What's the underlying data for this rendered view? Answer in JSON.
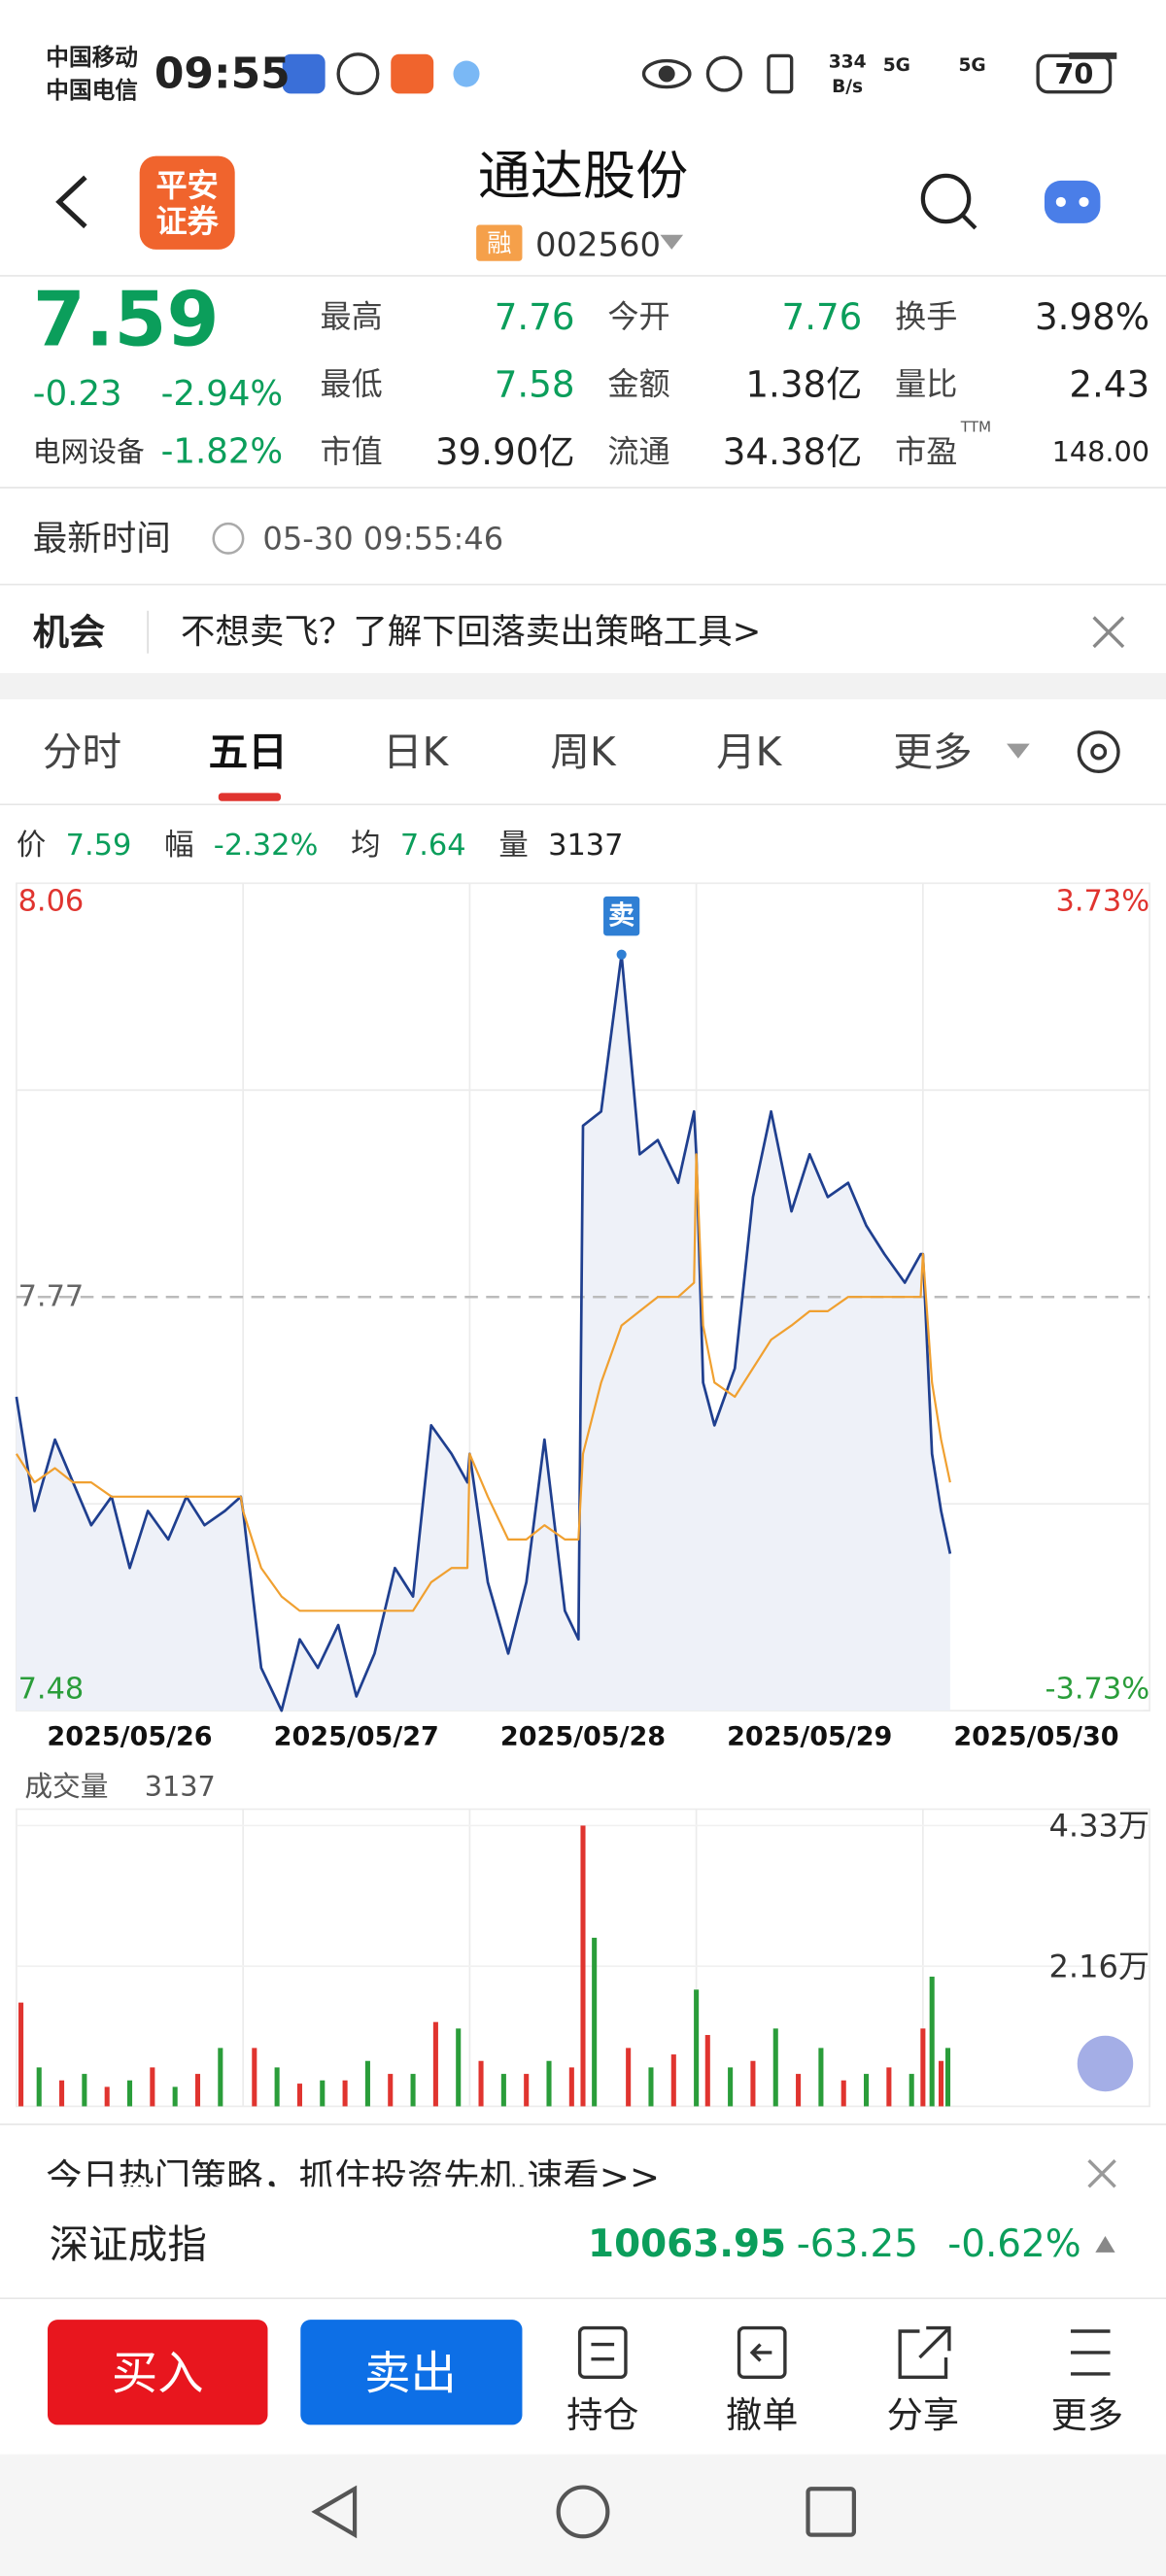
{
  "status_bar": {
    "carrier_1": "中国移动",
    "carrier_2": "中国电信",
    "time": "09:55",
    "speed_value": "334",
    "speed_unit": "B/s",
    "network": "5G",
    "battery": "70"
  },
  "header": {
    "logo_line_1": "平安",
    "logo_line_2": "证券",
    "title": "通达股份",
    "badge": "融",
    "code": "002560"
  },
  "quote": {
    "price": "7.59",
    "change": "-0.23",
    "change_pct": "-2.94%",
    "sector": "电网设备",
    "sector_pct": "-1.82%",
    "ttm": "TTM",
    "stats": [
      {
        "label": "最高",
        "value": "7.76",
        "color": "#0b9e5b"
      },
      {
        "label": "今开",
        "value": "7.76",
        "color": "#0b9e5b"
      },
      {
        "label": "换手",
        "value": "3.98%",
        "color": "#222222"
      },
      {
        "label": "最低",
        "value": "7.58",
        "color": "#0b9e5b"
      },
      {
        "label": "金额",
        "value": "1.38亿",
        "color": "#222222"
      },
      {
        "label": "量比",
        "value": "2.43",
        "color": "#222222"
      },
      {
        "label": "市值",
        "value": "39.90亿",
        "color": "#222222"
      },
      {
        "label": "流通",
        "value": "34.38亿",
        "color": "#222222"
      },
      {
        "label": "市盈",
        "value": "148.00",
        "color": "#222222"
      }
    ]
  },
  "update": {
    "label": "最新时间",
    "time": "05-30 09:55:46"
  },
  "banner": {
    "tag": "机会",
    "text": "不想卖飞？了解下回落卖出策略工具>"
  },
  "tabs": [
    "分时",
    "五日",
    "日K",
    "周K",
    "月K",
    "更多"
  ],
  "active_tab": 1,
  "chart_info": [
    {
      "label": "价",
      "value": "7.59",
      "color": "#0b9e5b"
    },
    {
      "label": "幅",
      "value": "-2.32%",
      "color": "#0b9e5b"
    },
    {
      "label": "均",
      "value": "7.64",
      "color": "#0b9e5b"
    },
    {
      "label": "量",
      "value": "3137",
      "color": "#222222"
    }
  ],
  "chart_data": [
    {
      "type": "line",
      "categories": [
        "2025/05/26",
        "2025/05/27",
        "2025/05/28",
        "2025/05/29",
        "2025/05/30"
      ],
      "xlim": [
        0,
        5
      ],
      "ylim": [
        7.48,
        8.06
      ],
      "yticks": [
        8.06,
        7.77,
        7.48
      ],
      "y2lim": [
        -3.73,
        3.73
      ],
      "y2ticks": [
        {
          "value": 3.73,
          "label": "3.73%"
        },
        {
          "value": -3.73,
          "label": "-3.73%"
        }
      ],
      "up_color": "#e0342f",
      "down_color": "#2a9d3a",
      "flat_color": "#666666",
      "series": [
        {
          "color": "#1f3f8f",
          "x": [
            0,
            0.08,
            0.17,
            0.25,
            0.33,
            0.42,
            0.5,
            0.58,
            0.67,
            0.75,
            0.83,
            0.92,
            0.99,
            1.0,
            1.08,
            1.17,
            1.25,
            1.33,
            1.42,
            1.5,
            1.58,
            1.67,
            1.75,
            1.83,
            1.92,
            1.99,
            2.0,
            2.08,
            2.17,
            2.25,
            2.33,
            2.42,
            2.48,
            2.5,
            2.58,
            2.67,
            2.75,
            2.83,
            2.92,
            2.99,
            3.0,
            3.03,
            3.08,
            3.17,
            3.25,
            3.33,
            3.42,
            3.5,
            3.58,
            3.67,
            3.75,
            3.83,
            3.92,
            3.99,
            4.0,
            4.04,
            4.08,
            4.12
          ],
          "values": [
            7.7,
            7.62,
            7.67,
            7.64,
            7.61,
            7.63,
            7.58,
            7.62,
            7.6,
            7.63,
            7.61,
            7.62,
            7.63,
            7.62,
            7.51,
            7.48,
            7.53,
            7.51,
            7.54,
            7.49,
            7.52,
            7.58,
            7.56,
            7.68,
            7.66,
            7.64,
            7.66,
            7.57,
            7.52,
            7.57,
            7.67,
            7.55,
            7.53,
            7.89,
            7.9,
            8.01,
            7.87,
            7.88,
            7.85,
            7.9,
            7.87,
            7.71,
            7.68,
            7.72,
            7.84,
            7.9,
            7.83,
            7.87,
            7.84,
            7.85,
            7.82,
            7.8,
            7.78,
            7.8,
            7.8,
            7.66,
            7.62,
            7.59
          ]
        },
        {
          "color": "#f0a030",
          "x": [
            0,
            0.08,
            0.17,
            0.25,
            0.33,
            0.42,
            0.5,
            0.58,
            0.67,
            0.75,
            0.83,
            0.92,
            0.99,
            1.0,
            1.08,
            1.17,
            1.25,
            1.33,
            1.42,
            1.5,
            1.58,
            1.67,
            1.75,
            1.83,
            1.92,
            1.99,
            2.0,
            2.08,
            2.17,
            2.25,
            2.33,
            2.42,
            2.48,
            2.5,
            2.58,
            2.67,
            2.75,
            2.83,
            2.92,
            2.99,
            3.0,
            3.03,
            3.08,
            3.17,
            3.25,
            3.33,
            3.42,
            3.5,
            3.58,
            3.67,
            3.75,
            3.83,
            3.92,
            3.99,
            4.0,
            4.04,
            4.08,
            4.12
          ],
          "values": [
            7.66,
            7.64,
            7.65,
            7.64,
            7.64,
            7.63,
            7.63,
            7.63,
            7.63,
            7.63,
            7.63,
            7.63,
            7.63,
            7.62,
            7.58,
            7.56,
            7.55,
            7.55,
            7.55,
            7.55,
            7.55,
            7.55,
            7.55,
            7.57,
            7.58,
            7.58,
            7.66,
            7.63,
            7.6,
            7.6,
            7.61,
            7.6,
            7.6,
            7.66,
            7.71,
            7.75,
            7.76,
            7.77,
            7.77,
            7.78,
            7.87,
            7.75,
            7.71,
            7.7,
            7.72,
            7.74,
            7.75,
            7.76,
            7.76,
            7.77,
            7.77,
            7.77,
            7.77,
            7.77,
            7.8,
            7.71,
            7.67,
            7.64
          ]
        }
      ],
      "marker": {
        "label": "卖",
        "x": 2.67,
        "value": 8.01,
        "color": "#2f7fd4"
      }
    },
    {
      "type": "bar",
      "title": "成交量",
      "latest": "3137",
      "xlim": [
        0,
        5
      ],
      "ylim": [
        0,
        43300
      ],
      "yticks": [
        {
          "value": 43300,
          "label": "4.33万"
        },
        {
          "value": 21600,
          "label": "2.16万"
        }
      ],
      "series": [
        {
          "color": "#e0342f",
          "x": [
            0.02,
            0.2,
            0.4,
            0.6,
            0.8,
            1.05,
            1.25,
            1.45,
            1.65,
            1.85,
            2.05,
            2.25,
            2.45,
            2.5,
            2.7,
            2.9,
            3.05,
            3.25,
            3.45,
            3.65,
            3.85,
            4.0,
            4.08
          ],
          "values": [
            16000,
            4000,
            3000,
            6000,
            5000,
            9000,
            3500,
            4000,
            5000,
            13000,
            7000,
            5000,
            6000,
            43300,
            9000,
            8000,
            11000,
            7000,
            5000,
            4000,
            6000,
            12000,
            7000
          ]
        },
        {
          "color": "#2a9d3a",
          "x": [
            0.1,
            0.3,
            0.5,
            0.7,
            0.9,
            1.15,
            1.35,
            1.55,
            1.75,
            1.95,
            2.15,
            2.35,
            2.55,
            2.8,
            3.0,
            3.15,
            3.35,
            3.55,
            3.75,
            3.95,
            4.04,
            4.11
          ],
          "values": [
            6000,
            5000,
            4000,
            3000,
            9000,
            6000,
            4000,
            7000,
            5000,
            12000,
            5000,
            7000,
            26000,
            6000,
            18000,
            6000,
            12000,
            9000,
            5000,
            5000,
            20000,
            9000
          ]
        }
      ]
    }
  ],
  "promo": "今日热门策略，抓住投资先机,速看>>",
  "index": {
    "name": "深证成指",
    "value": "10063.95",
    "change": "-63.25",
    "change_pct": "-0.62%"
  },
  "actions": {
    "buy": "买入",
    "sell": "卖出",
    "tools": [
      "持仓",
      "撤单",
      "分享",
      "更多"
    ]
  }
}
